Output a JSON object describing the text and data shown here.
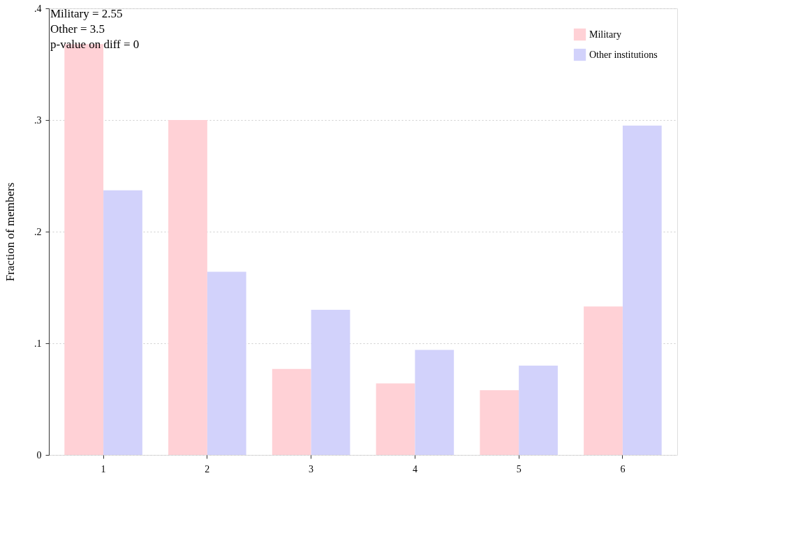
{
  "chart_data": {
    "type": "bar",
    "ylabel": "Fraction of members",
    "categories": [
      "1",
      "2",
      "3",
      "4",
      "5",
      "6"
    ],
    "series": [
      {
        "name": "Military",
        "color": "#ffd1d6",
        "values": [
          0.368,
          0.3,
          0.077,
          0.064,
          0.058,
          0.133
        ]
      },
      {
        "name": "Other institutions",
        "color": "#d2d2fb",
        "values": [
          0.237,
          0.164,
          0.13,
          0.094,
          0.08,
          0.295
        ]
      }
    ],
    "ylim": [
      0,
      0.4
    ],
    "yticks": [
      0,
      {
        "value": 0.1,
        "label": ".1"
      },
      {
        "value": 0.2,
        "label": ".2"
      },
      {
        "value": 0.3,
        "label": ".3"
      },
      {
        "value": 0.4,
        "label": ".4"
      }
    ],
    "grid": "y",
    "legend": "top right",
    "annotations": [
      "Military = 2.55",
      "Other = 3.5",
      "p-value on diff = 0"
    ]
  }
}
